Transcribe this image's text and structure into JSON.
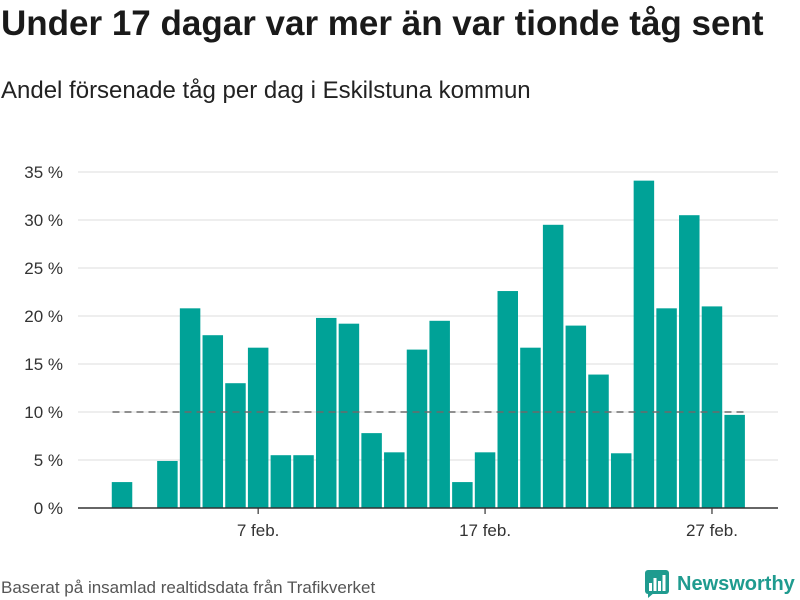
{
  "colors": {
    "bar": "#00a297",
    "reference_line": "#6b6b6b",
    "grid": "#dcdcdc",
    "axis": "#333333",
    "brand": "#1f9b8f"
  },
  "branding": {
    "name": "Newsworthy",
    "icon": "newsworthy-logo-icon"
  },
  "chart_data": {
    "type": "bar",
    "title": "Under 17 dagar var mer än var tionde tåg sent",
    "subtitle": "Andel försenade tåg per dag i Eskilstuna kommun",
    "source": "Baserat på insamlad realtidsdata från Trafikverket",
    "x": [
      1,
      2,
      3,
      4,
      5,
      6,
      7,
      8,
      9,
      10,
      11,
      12,
      13,
      14,
      15,
      16,
      17,
      18,
      19,
      20,
      21,
      22,
      23,
      24,
      25,
      26,
      27,
      28
    ],
    "values": [
      2.7,
      0,
      4.9,
      20.8,
      18.0,
      13.0,
      16.7,
      5.5,
      5.5,
      19.8,
      19.2,
      7.8,
      5.8,
      16.5,
      19.5,
      2.7,
      5.8,
      22.6,
      16.7,
      29.5,
      19.0,
      13.9,
      5.7,
      34.1,
      20.8,
      30.5,
      21.0,
      9.7
    ],
    "ylim": [
      0,
      35
    ],
    "yticks": [
      {
        "value": 0,
        "label": "0 %"
      },
      {
        "value": 5,
        "label": "5 %"
      },
      {
        "value": 10,
        "label": "10 %"
      },
      {
        "value": 15,
        "label": "15 %"
      },
      {
        "value": 20,
        "label": "20 %"
      },
      {
        "value": 25,
        "label": "25 %"
      },
      {
        "value": 30,
        "label": "30 %"
      },
      {
        "value": 35,
        "label": "35 %"
      }
    ],
    "xticks": [
      {
        "value": 7,
        "label": "7 feb."
      },
      {
        "value": 17,
        "label": "17 feb."
      },
      {
        "value": 27,
        "label": "27 feb."
      }
    ],
    "reference_line": 10,
    "grid": true
  }
}
